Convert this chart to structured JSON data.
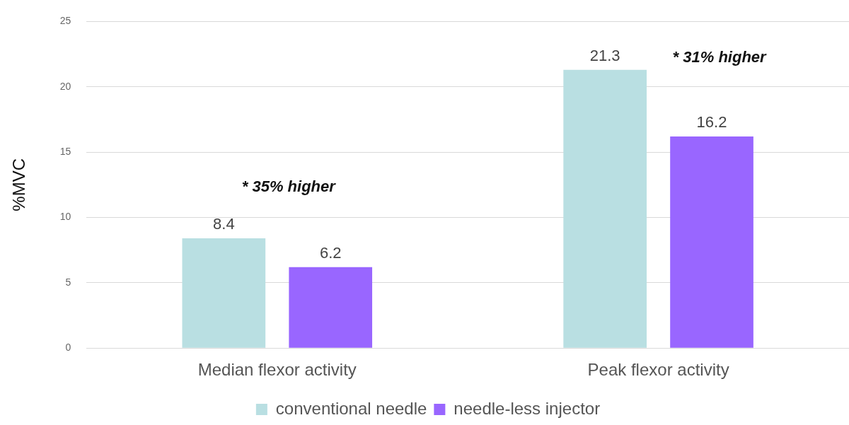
{
  "chart_data": {
    "type": "bar",
    "ylabel": "%MVC",
    "categories": [
      "Median flexor activity",
      "Peak flexor activity"
    ],
    "series": [
      {
        "name": "conventional needle",
        "color": "#b9dfe2",
        "values": [
          8.4,
          21.3
        ]
      },
      {
        "name": "needle-less injector",
        "color": "#9966ff",
        "values": [
          6.2,
          16.2
        ]
      }
    ],
    "ylim": [
      0,
      25
    ],
    "yticks": [
      0,
      5,
      10,
      15,
      20,
      25
    ],
    "grid": "y",
    "legend": "bottom",
    "data_labels": true,
    "annotations": [
      "* 35% higher",
      "* 31% higher"
    ]
  }
}
